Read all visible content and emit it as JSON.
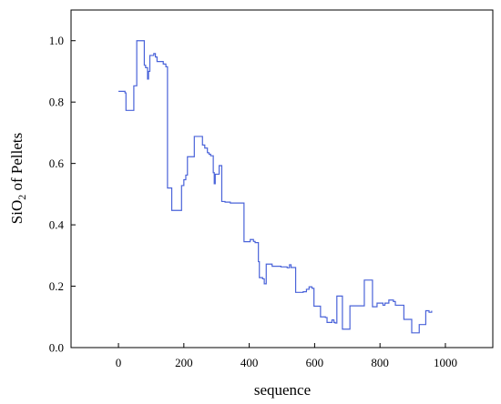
{
  "chart_data": {
    "type": "line",
    "xlabel": "sequence",
    "ylabel_main": "SiO",
    "ylabel_sub": "2",
    "ylabel_rest": " of Pellets",
    "xlim": [
      -145,
      1145
    ],
    "ylim": [
      0.0,
      1.1
    ],
    "xticks": [
      0,
      200,
      400,
      600,
      800,
      1000
    ],
    "xtick_labels": [
      "0",
      "200",
      "400",
      "600",
      "800",
      "1000"
    ],
    "yticks": [
      0.0,
      0.2,
      0.4,
      0.6,
      0.8,
      1.0
    ],
    "ytick_labels": [
      "0.0",
      "0.2",
      "0.4",
      "0.6",
      "0.8",
      "1.0"
    ],
    "grid": false,
    "line_color": "#4a63d9",
    "series": [
      {
        "step": true,
        "points": [
          [
            0,
            0.835
          ],
          [
            20,
            0.83
          ],
          [
            23,
            0.773
          ],
          [
            42,
            0.773
          ],
          [
            47,
            0.853
          ],
          [
            52,
            0.853
          ],
          [
            56,
            1.0
          ],
          [
            77,
            1.0
          ],
          [
            79,
            0.92
          ],
          [
            83,
            0.912
          ],
          [
            89,
            0.875
          ],
          [
            92,
            0.9
          ],
          [
            96,
            0.952
          ],
          [
            108,
            0.958
          ],
          [
            113,
            0.947
          ],
          [
            118,
            0.932
          ],
          [
            132,
            0.932
          ],
          [
            137,
            0.924
          ],
          [
            145,
            0.915
          ],
          [
            150,
            0.52
          ],
          [
            158,
            0.52
          ],
          [
            163,
            0.447
          ],
          [
            188,
            0.447
          ],
          [
            193,
            0.528
          ],
          [
            200,
            0.547
          ],
          [
            206,
            0.562
          ],
          [
            211,
            0.622
          ],
          [
            227,
            0.622
          ],
          [
            232,
            0.688
          ],
          [
            250,
            0.688
          ],
          [
            257,
            0.66
          ],
          [
            264,
            0.65
          ],
          [
            272,
            0.635
          ],
          [
            277,
            0.63
          ],
          [
            282,
            0.625
          ],
          [
            290,
            0.57
          ],
          [
            293,
            0.534
          ],
          [
            296,
            0.565
          ],
          [
            304,
            0.565
          ],
          [
            308,
            0.593
          ],
          [
            314,
            0.593
          ],
          [
            316,
            0.476
          ],
          [
            323,
            0.476
          ],
          [
            326,
            0.474
          ],
          [
            338,
            0.474
          ],
          [
            342,
            0.471
          ],
          [
            379,
            0.471
          ],
          [
            384,
            0.345
          ],
          [
            398,
            0.345
          ],
          [
            403,
            0.352
          ],
          [
            413,
            0.346
          ],
          [
            418,
            0.342
          ],
          [
            428,
            0.28
          ],
          [
            431,
            0.228
          ],
          [
            441,
            0.224
          ],
          [
            446,
            0.208
          ],
          [
            452,
            0.272
          ],
          [
            463,
            0.272
          ],
          [
            470,
            0.265
          ],
          [
            482,
            0.265
          ],
          [
            497,
            0.263
          ],
          [
            516,
            0.26
          ],
          [
            523,
            0.27
          ],
          [
            528,
            0.261
          ],
          [
            538,
            0.261
          ],
          [
            542,
            0.18
          ],
          [
            565,
            0.182
          ],
          [
            575,
            0.19
          ],
          [
            583,
            0.198
          ],
          [
            592,
            0.193
          ],
          [
            598,
            0.135
          ],
          [
            614,
            0.135
          ],
          [
            618,
            0.1
          ],
          [
            633,
            0.098
          ],
          [
            638,
            0.082
          ],
          [
            648,
            0.082
          ],
          [
            653,
            0.09
          ],
          [
            659,
            0.082
          ],
          [
            663,
            0.08
          ],
          [
            668,
            0.168
          ],
          [
            681,
            0.168
          ],
          [
            685,
            0.06
          ],
          [
            704,
            0.06
          ],
          [
            708,
            0.136
          ],
          [
            748,
            0.136
          ],
          [
            752,
            0.22
          ],
          [
            772,
            0.22
          ],
          [
            777,
            0.133
          ],
          [
            786,
            0.133
          ],
          [
            791,
            0.145
          ],
          [
            800,
            0.145
          ],
          [
            809,
            0.138
          ],
          [
            815,
            0.145
          ],
          [
            827,
            0.155
          ],
          [
            841,
            0.15
          ],
          [
            847,
            0.138
          ],
          [
            873,
            0.092
          ],
          [
            885,
            0.092
          ],
          [
            897,
            0.048
          ],
          [
            910,
            0.048
          ],
          [
            920,
            0.075
          ],
          [
            931,
            0.075
          ],
          [
            940,
            0.12
          ],
          [
            950,
            0.115
          ],
          [
            958,
            0.12
          ]
        ]
      }
    ]
  }
}
